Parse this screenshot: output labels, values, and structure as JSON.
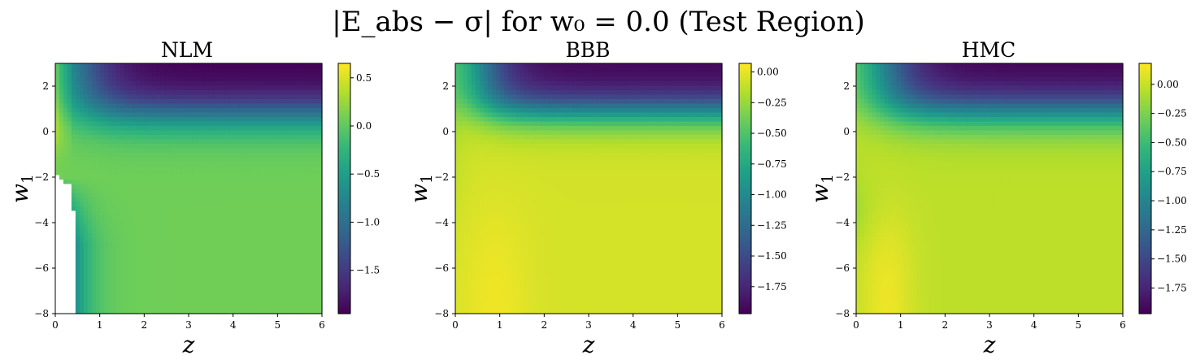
{
  "figure": {
    "title": "|E_abs − σ| for w₀ = 0.0 (Test Region)"
  },
  "colors": {
    "viridis": [
      "#440154",
      "#482878",
      "#3e4989",
      "#31688e",
      "#26828e",
      "#1f9e89",
      "#35b779",
      "#6ece58",
      "#b5de2b",
      "#fde725"
    ],
    "background": "#ffffff"
  },
  "chart_data": [
    {
      "type": "heatmap",
      "title": "NLM",
      "xlabel": "z",
      "ylabel": "w_1",
      "xlim": [
        0,
        6
      ],
      "ylim": [
        -8,
        3
      ],
      "xticks": [
        "0",
        "1",
        "2",
        "3",
        "4",
        "5",
        "6"
      ],
      "yticks": [
        "−8",
        "−6",
        "−4",
        "−2",
        "0",
        "2"
      ],
      "colorbar": {
        "range": [
          -1.95,
          0.65
        ],
        "ticks": [
          "0.5",
          "0.0",
          "−0.5",
          "−1.0",
          "−1.5"
        ],
        "tick_values": [
          0.5,
          0.0,
          -0.5,
          -1.0,
          -1.5
        ]
      },
      "value_notes": {
        "top_right_min": -1.95,
        "upper_left_max": 0.6,
        "plateau_below_w1_0": 0.08,
        "masked_region": "white (NaN) near z≈0–0.4, w1 below −2"
      }
    },
    {
      "type": "heatmap",
      "title": "BBB",
      "xlabel": "z",
      "ylabel": "w_1",
      "xlim": [
        0,
        6
      ],
      "ylim": [
        -8,
        3
      ],
      "xticks": [
        "0",
        "1",
        "2",
        "3",
        "4",
        "5",
        "6"
      ],
      "yticks": [
        "−8",
        "−6",
        "−4",
        "−2",
        "0",
        "2"
      ],
      "colorbar": {
        "range": [
          -1.97,
          0.07
        ],
        "ticks": [
          "0.00",
          "−0.25",
          "−0.50",
          "−0.75",
          "−1.00",
          "−1.25",
          "−1.50",
          "−1.75"
        ],
        "tick_values": [
          0.0,
          -0.25,
          -0.5,
          -0.75,
          -1.0,
          -1.25,
          -1.5,
          -1.75
        ]
      },
      "value_notes": {
        "top_right_min": -1.95,
        "plateau_below_w1_0": -0.05,
        "bottom_left_max": 0.05
      }
    },
    {
      "type": "heatmap",
      "title": "HMC",
      "xlabel": "z",
      "ylabel": "w_1",
      "xlim": [
        0,
        6
      ],
      "ylim": [
        -8,
        3
      ],
      "xticks": [
        "0",
        "1",
        "2",
        "3",
        "4",
        "5",
        "6"
      ],
      "yticks": [
        "−8",
        "−6",
        "−4",
        "−2",
        "0",
        "2"
      ],
      "colorbar": {
        "range": [
          -1.97,
          0.18
        ],
        "ticks": [
          "0.00",
          "−0.25",
          "−0.50",
          "−0.75",
          "−1.00",
          "−1.25",
          "−1.50",
          "−1.75"
        ],
        "tick_values": [
          0.0,
          -0.25,
          -0.5,
          -0.75,
          -1.0,
          -1.25,
          -1.5,
          -1.75
        ]
      },
      "value_notes": {
        "top_right_min": -1.95,
        "plateau_below_w1_0": -0.02,
        "bottom_left_max": 0.16
      }
    }
  ]
}
